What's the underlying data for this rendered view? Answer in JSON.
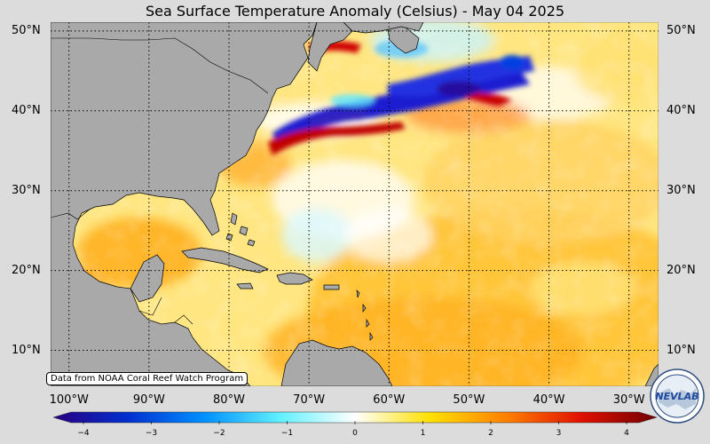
{
  "title": "Sea Surface Temperature Anomaly (Celsius) - May 04 2025",
  "latitudes": [
    {
      "label": "50°N",
      "lat": 50
    },
    {
      "label": "40°N",
      "lat": 40
    },
    {
      "label": "30°N",
      "lat": 30
    },
    {
      "label": "20°N",
      "lat": 20
    },
    {
      "label": "10°N",
      "lat": 10
    }
  ],
  "longitudes": [
    {
      "label": "100°W",
      "lon": -100
    },
    {
      "label": "90°W",
      "lon": -90
    },
    {
      "label": "80°W",
      "lon": -80
    },
    {
      "label": "70°W",
      "lon": -70
    },
    {
      "label": "60°W",
      "lon": -60
    },
    {
      "label": "50°W",
      "lon": -50
    },
    {
      "label": "40°W",
      "lon": -40
    },
    {
      "label": "30°W",
      "lon": -30
    }
  ],
  "credit": "Data from NOAA Coral Reef Watch Program",
  "colorbar": {
    "min": -4,
    "max": 4,
    "ticks": [
      {
        "label": "−4",
        "value": -4
      },
      {
        "label": "−3",
        "value": -3
      },
      {
        "label": "−2",
        "value": -2
      },
      {
        "label": "−1",
        "value": -1
      },
      {
        "label": "0",
        "value": 0
      },
      {
        "label": "1",
        "value": 1
      },
      {
        "label": "2",
        "value": 2
      },
      {
        "label": "3",
        "value": 3
      },
      {
        "label": "4",
        "value": 4
      }
    ],
    "colors": [
      "#2a0080",
      "#0030d0",
      "#0090ff",
      "#60f0ff",
      "#ffffff",
      "#ffe000",
      "#ff8000",
      "#e01000",
      "#700000"
    ]
  },
  "logo": {
    "text": "NEVLAB",
    "icon": "nev-lab-logo-icon"
  },
  "colors": {
    "land": "#a9a9a9",
    "warm": "#ffd040",
    "cold": "#1a2ad0",
    "background": "#dcdcdc"
  }
}
